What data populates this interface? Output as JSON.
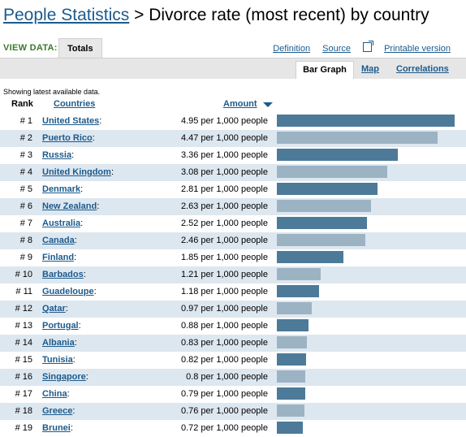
{
  "header": {
    "crumb": "People Statistics",
    "separator": " > ",
    "title": "Divorce rate (most recent) by country"
  },
  "view": {
    "label": "VIEW DATA:",
    "tab_totals": "Totals",
    "link_definition": "Definition",
    "link_source": "Source",
    "link_printable": "Printable version"
  },
  "subtabs": {
    "bar_graph": "Bar Graph",
    "map": "Map",
    "correlations": "Correlations"
  },
  "note": "Showing latest available data.",
  "columns": {
    "rank": "Rank",
    "countries": "Countries",
    "amount": "Amount"
  },
  "colors": {
    "bar_dark": "#4d7a99",
    "bar_light": "#9cb3c4",
    "row_alt": "#dde7f0",
    "link": "#1c5a8c"
  },
  "table": {
    "max_value": 4.95,
    "rows": [
      {
        "rank": "# 1",
        "country": "United States",
        "value_text": "4.95 per 1,000 people",
        "value": 4.95
      },
      {
        "rank": "# 2",
        "country": "Puerto Rico",
        "value_text": "4.47 per 1,000 people",
        "value": 4.47
      },
      {
        "rank": "# 3",
        "country": "Russia",
        "value_text": "3.36 per 1,000 people",
        "value": 3.36
      },
      {
        "rank": "# 4",
        "country": "United Kingdom",
        "value_text": "3.08 per 1,000 people",
        "value": 3.08
      },
      {
        "rank": "# 5",
        "country": "Denmark",
        "value_text": "2.81 per 1,000 people",
        "value": 2.81
      },
      {
        "rank": "# 6",
        "country": "New Zealand",
        "value_text": "2.63 per 1,000 people",
        "value": 2.63
      },
      {
        "rank": "# 7",
        "country": "Australia",
        "value_text": "2.52 per 1,000 people",
        "value": 2.52
      },
      {
        "rank": "# 8",
        "country": "Canada",
        "value_text": "2.46 per 1,000 people",
        "value": 2.46
      },
      {
        "rank": "# 9",
        "country": "Finland",
        "value_text": "1.85 per 1,000 people",
        "value": 1.85
      },
      {
        "rank": "# 10",
        "country": "Barbados",
        "value_text": "1.21 per 1,000 people",
        "value": 1.21
      },
      {
        "rank": "# 11",
        "country": "Guadeloupe",
        "value_text": "1.18 per 1,000 people",
        "value": 1.18
      },
      {
        "rank": "# 12",
        "country": "Qatar",
        "value_text": "0.97 per 1,000 people",
        "value": 0.97
      },
      {
        "rank": "# 13",
        "country": "Portugal",
        "value_text": "0.88 per 1,000 people",
        "value": 0.88
      },
      {
        "rank": "# 14",
        "country": "Albania",
        "value_text": "0.83 per 1,000 people",
        "value": 0.83
      },
      {
        "rank": "# 15",
        "country": "Tunisia",
        "value_text": "0.82 per 1,000 people",
        "value": 0.82
      },
      {
        "rank": "# 16",
        "country": "Singapore",
        "value_text": "0.8 per 1,000 people",
        "value": 0.8
      },
      {
        "rank": "# 17",
        "country": "China",
        "value_text": "0.79 per 1,000 people",
        "value": 0.79
      },
      {
        "rank": "# 18",
        "country": "Greece",
        "value_text": "0.76 per 1,000 people",
        "value": 0.76
      },
      {
        "rank": "# 19",
        "country": "Brunei",
        "value_text": "0.72 per 1,000 people",
        "value": 0.72
      }
    ]
  }
}
